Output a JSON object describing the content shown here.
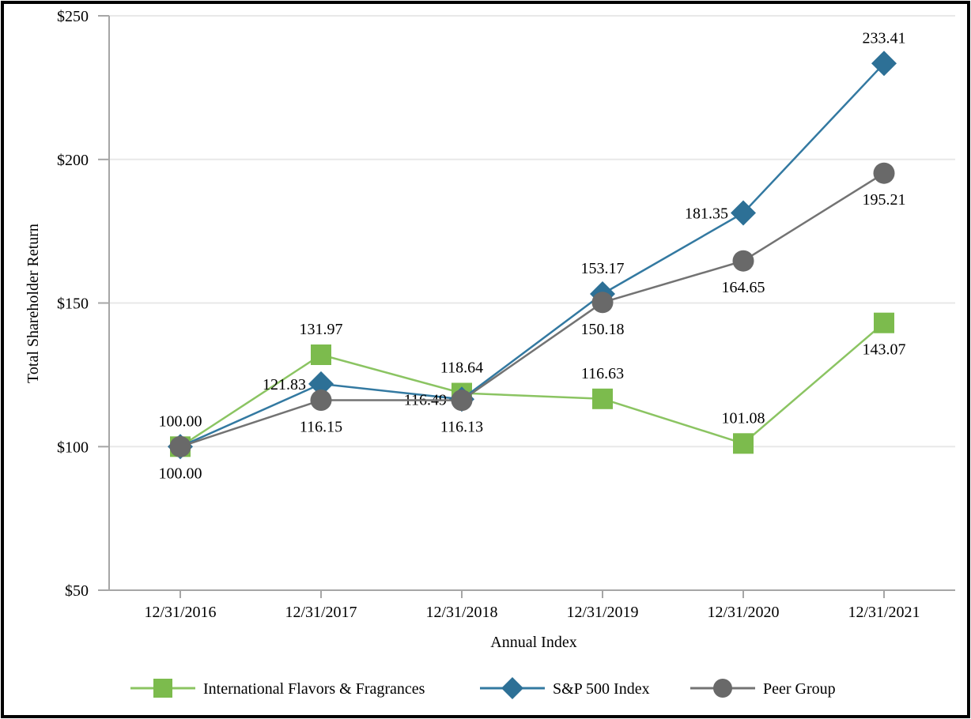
{
  "chart_data": {
    "type": "line",
    "title": "",
    "xlabel": "Annual Index",
    "ylabel": "Total Shareholder Return",
    "categories": [
      "12/31/2016",
      "12/31/2017",
      "12/31/2018",
      "12/31/2019",
      "12/31/2020",
      "12/31/2021"
    ],
    "ylim": [
      50,
      250
    ],
    "y_ticks": [
      {
        "label": "$50",
        "value": 50
      },
      {
        "label": "$100",
        "value": 100
      },
      {
        "label": "$150",
        "value": 150
      },
      {
        "label": "$200",
        "value": 200
      },
      {
        "label": "$250",
        "value": 250
      }
    ],
    "grid": "horizontal",
    "legend_position": "bottom",
    "axis_color": "#A6A6A6",
    "grid_color": "#E8E8E8",
    "label_color": "#000000",
    "series": [
      {
        "name": "International Flavors & Fragrances",
        "marker": "square",
        "color": "#7CBB4D",
        "line_color": "#8BC462",
        "values": [
          100.0,
          131.97,
          118.64,
          116.63,
          101.08,
          143.07
        ],
        "label_placements": [
          "above",
          "above",
          "above",
          "above",
          "above",
          "below"
        ]
      },
      {
        "name": "S&P 500 Index",
        "marker": "diamond",
        "color": "#2D7096",
        "line_color": "#3379A1",
        "values": [
          100.0,
          121.83,
          116.49,
          153.17,
          181.35,
          233.41
        ],
        "label_placements": [
          "none",
          "left",
          "left",
          "above",
          "left",
          "above"
        ]
      },
      {
        "name": "Peer Group",
        "marker": "circle",
        "color": "#696969",
        "line_color": "#737373",
        "values": [
          100.0,
          116.15,
          116.13,
          150.18,
          164.65,
          195.21
        ],
        "label_placements": [
          "below",
          "below",
          "below",
          "below",
          "below",
          "below"
        ]
      }
    ]
  }
}
